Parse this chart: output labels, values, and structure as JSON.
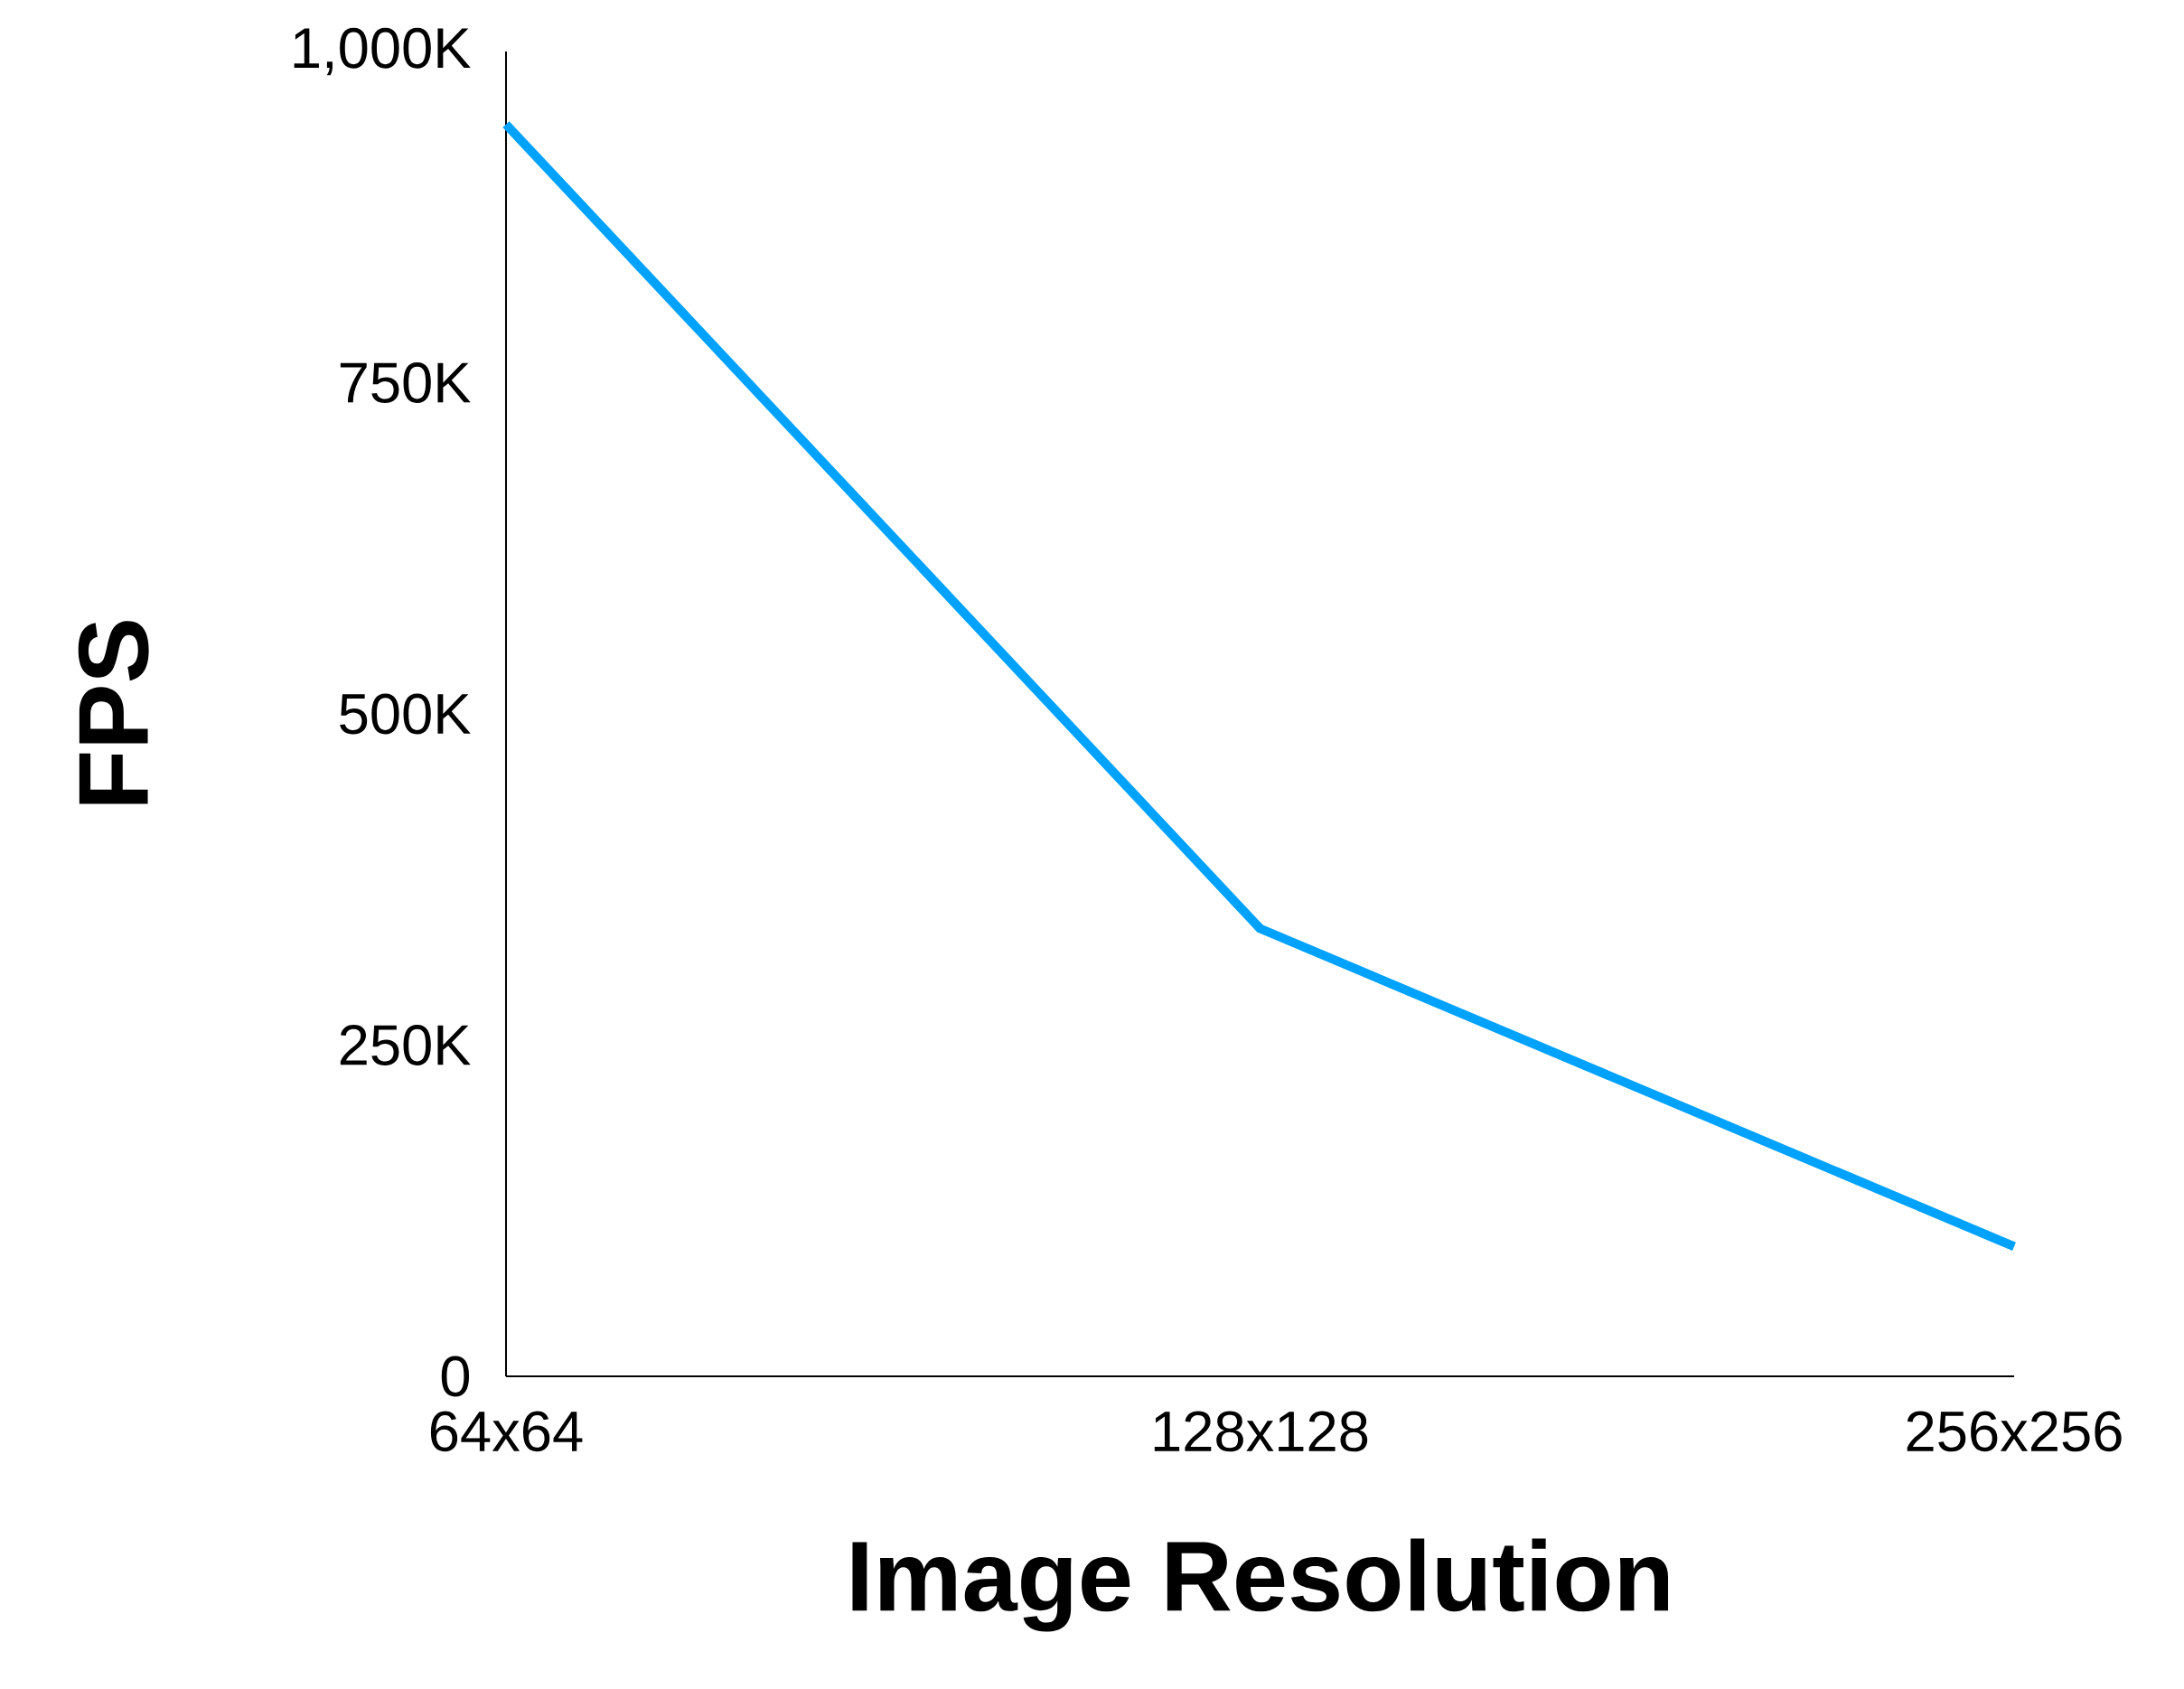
{
  "chart_data": {
    "type": "line",
    "xlabel": "Image Resolution",
    "ylabel": "FPS",
    "categories": [
      "64x64",
      "128x128",
      "256x256"
    ],
    "values": [
      945,
      338,
      98
    ],
    "color": "#00a2ff",
    "marker": "none",
    "ylim": [
      0,
      1000
    ],
    "yticks": [
      {
        "value": 0,
        "label": "0"
      },
      {
        "value": 250,
        "label": "250K"
      },
      {
        "value": 500,
        "label": "500K"
      },
      {
        "value": 750,
        "label": "750K"
      },
      {
        "value": 1000,
        "label": "1,000K"
      }
    ]
  }
}
